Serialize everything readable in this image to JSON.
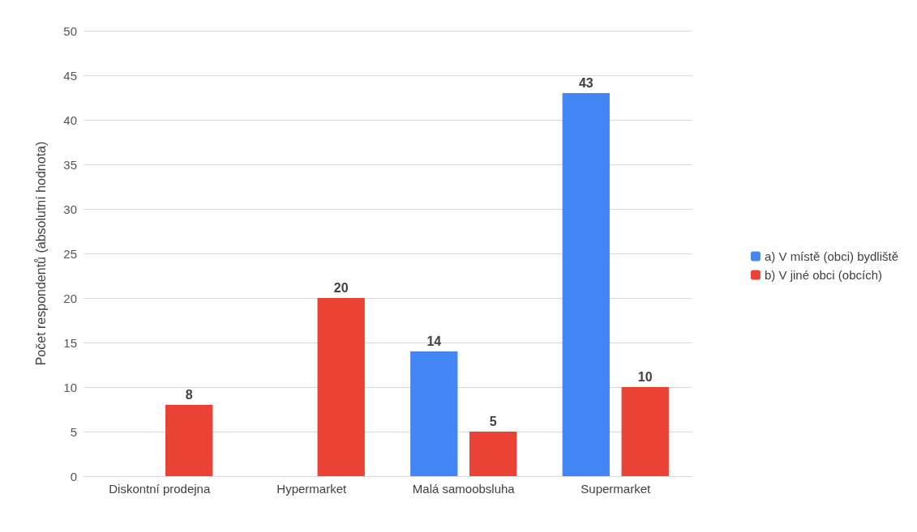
{
  "chart_data": {
    "type": "bar",
    "ylabel": "Počet respondentů (absolutní hodnota)",
    "categories": [
      "Diskontní prodejna",
      "Hypermarket",
      "Malá samoobsluha",
      "Supermarket"
    ],
    "series": [
      {
        "name": "a) V místě (obci) bydliště",
        "color": "#4285f4",
        "values": [
          null,
          null,
          14,
          43
        ]
      },
      {
        "name": "b) V jiné obci (obcích)",
        "color": "#ea4335",
        "values": [
          8,
          20,
          5,
          10
        ]
      }
    ],
    "ylim": [
      0,
      50
    ],
    "yticks": [
      0,
      5,
      10,
      15,
      20,
      25,
      30,
      35,
      40,
      45,
      50
    ],
    "grid": "y",
    "legend": "right",
    "data_labels": true
  }
}
